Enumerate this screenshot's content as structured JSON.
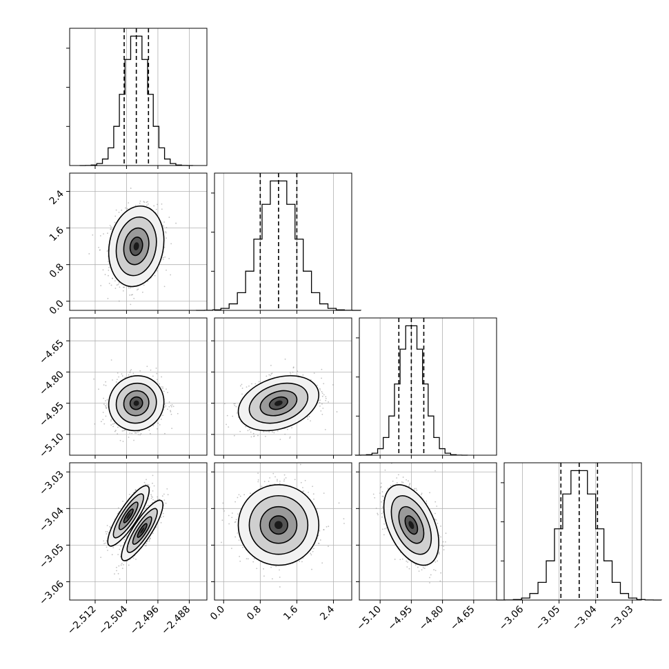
{
  "chart_data": {
    "type": "corner",
    "parameters": [
      {
        "median": -2.5015,
        "sigma": 0.0032,
        "range": [
          -2.5185,
          -2.4835
        ],
        "ticks": [
          -2.512,
          -2.504,
          -2.496,
          -2.488
        ],
        "tick_labels": [
          "−2.512",
          "−2.504",
          "−2.496",
          "−2.488"
        ],
        "quantiles": [
          -2.5046,
          -2.5015,
          -2.4984
        ]
      },
      {
        "median": 1.2,
        "sigma": 0.4,
        "range": [
          -0.2,
          2.8
        ],
        "ticks": [
          0.0,
          0.8,
          1.6,
          2.4
        ],
        "tick_labels": [
          "0.0",
          "0.8",
          "1.6",
          "2.4"
        ],
        "quantiles": [
          0.8,
          1.2,
          1.6
        ]
      },
      {
        "median": -4.95,
        "sigma": 0.06,
        "range": [
          -5.2,
          -4.54
        ],
        "ticks": [
          -5.1,
          -4.95,
          -4.8,
          -4.65
        ],
        "tick_labels": [
          "−5.10",
          "−4.95",
          "−4.80",
          "−4.65"
        ],
        "quantiles": [
          -5.01,
          -4.95,
          -4.89
        ]
      },
      {
        "median": -3.0445,
        "sigma": 0.005,
        "range": [
          -3.065,
          -3.0275
        ],
        "ticks": [
          -3.06,
          -3.05,
          -3.04,
          -3.03
        ],
        "tick_labels": [
          "−3.06",
          "−3.05",
          "−3.04",
          "−3.03"
        ],
        "quantiles": [
          -3.0495,
          -3.0445,
          -3.0395
        ]
      }
    ],
    "correlations": {
      "1-0": 0.15,
      "2-0": 0.05,
      "2-1": 0.3,
      "3-0": 0.85,
      "3-1": 0.0,
      "3-2": -0.45
    },
    "bimodal": {
      "panel": "3-0",
      "modes": [
        [
          -2.5035,
          -3.042
        ],
        [
          -2.5,
          -3.046
        ]
      ]
    },
    "quantile_levels": [
      0.16,
      0.5,
      0.84
    ],
    "histogram_bins": 20,
    "grid": true,
    "colors": {
      "line": "#000000",
      "scatter": "#8c8c8c"
    }
  }
}
